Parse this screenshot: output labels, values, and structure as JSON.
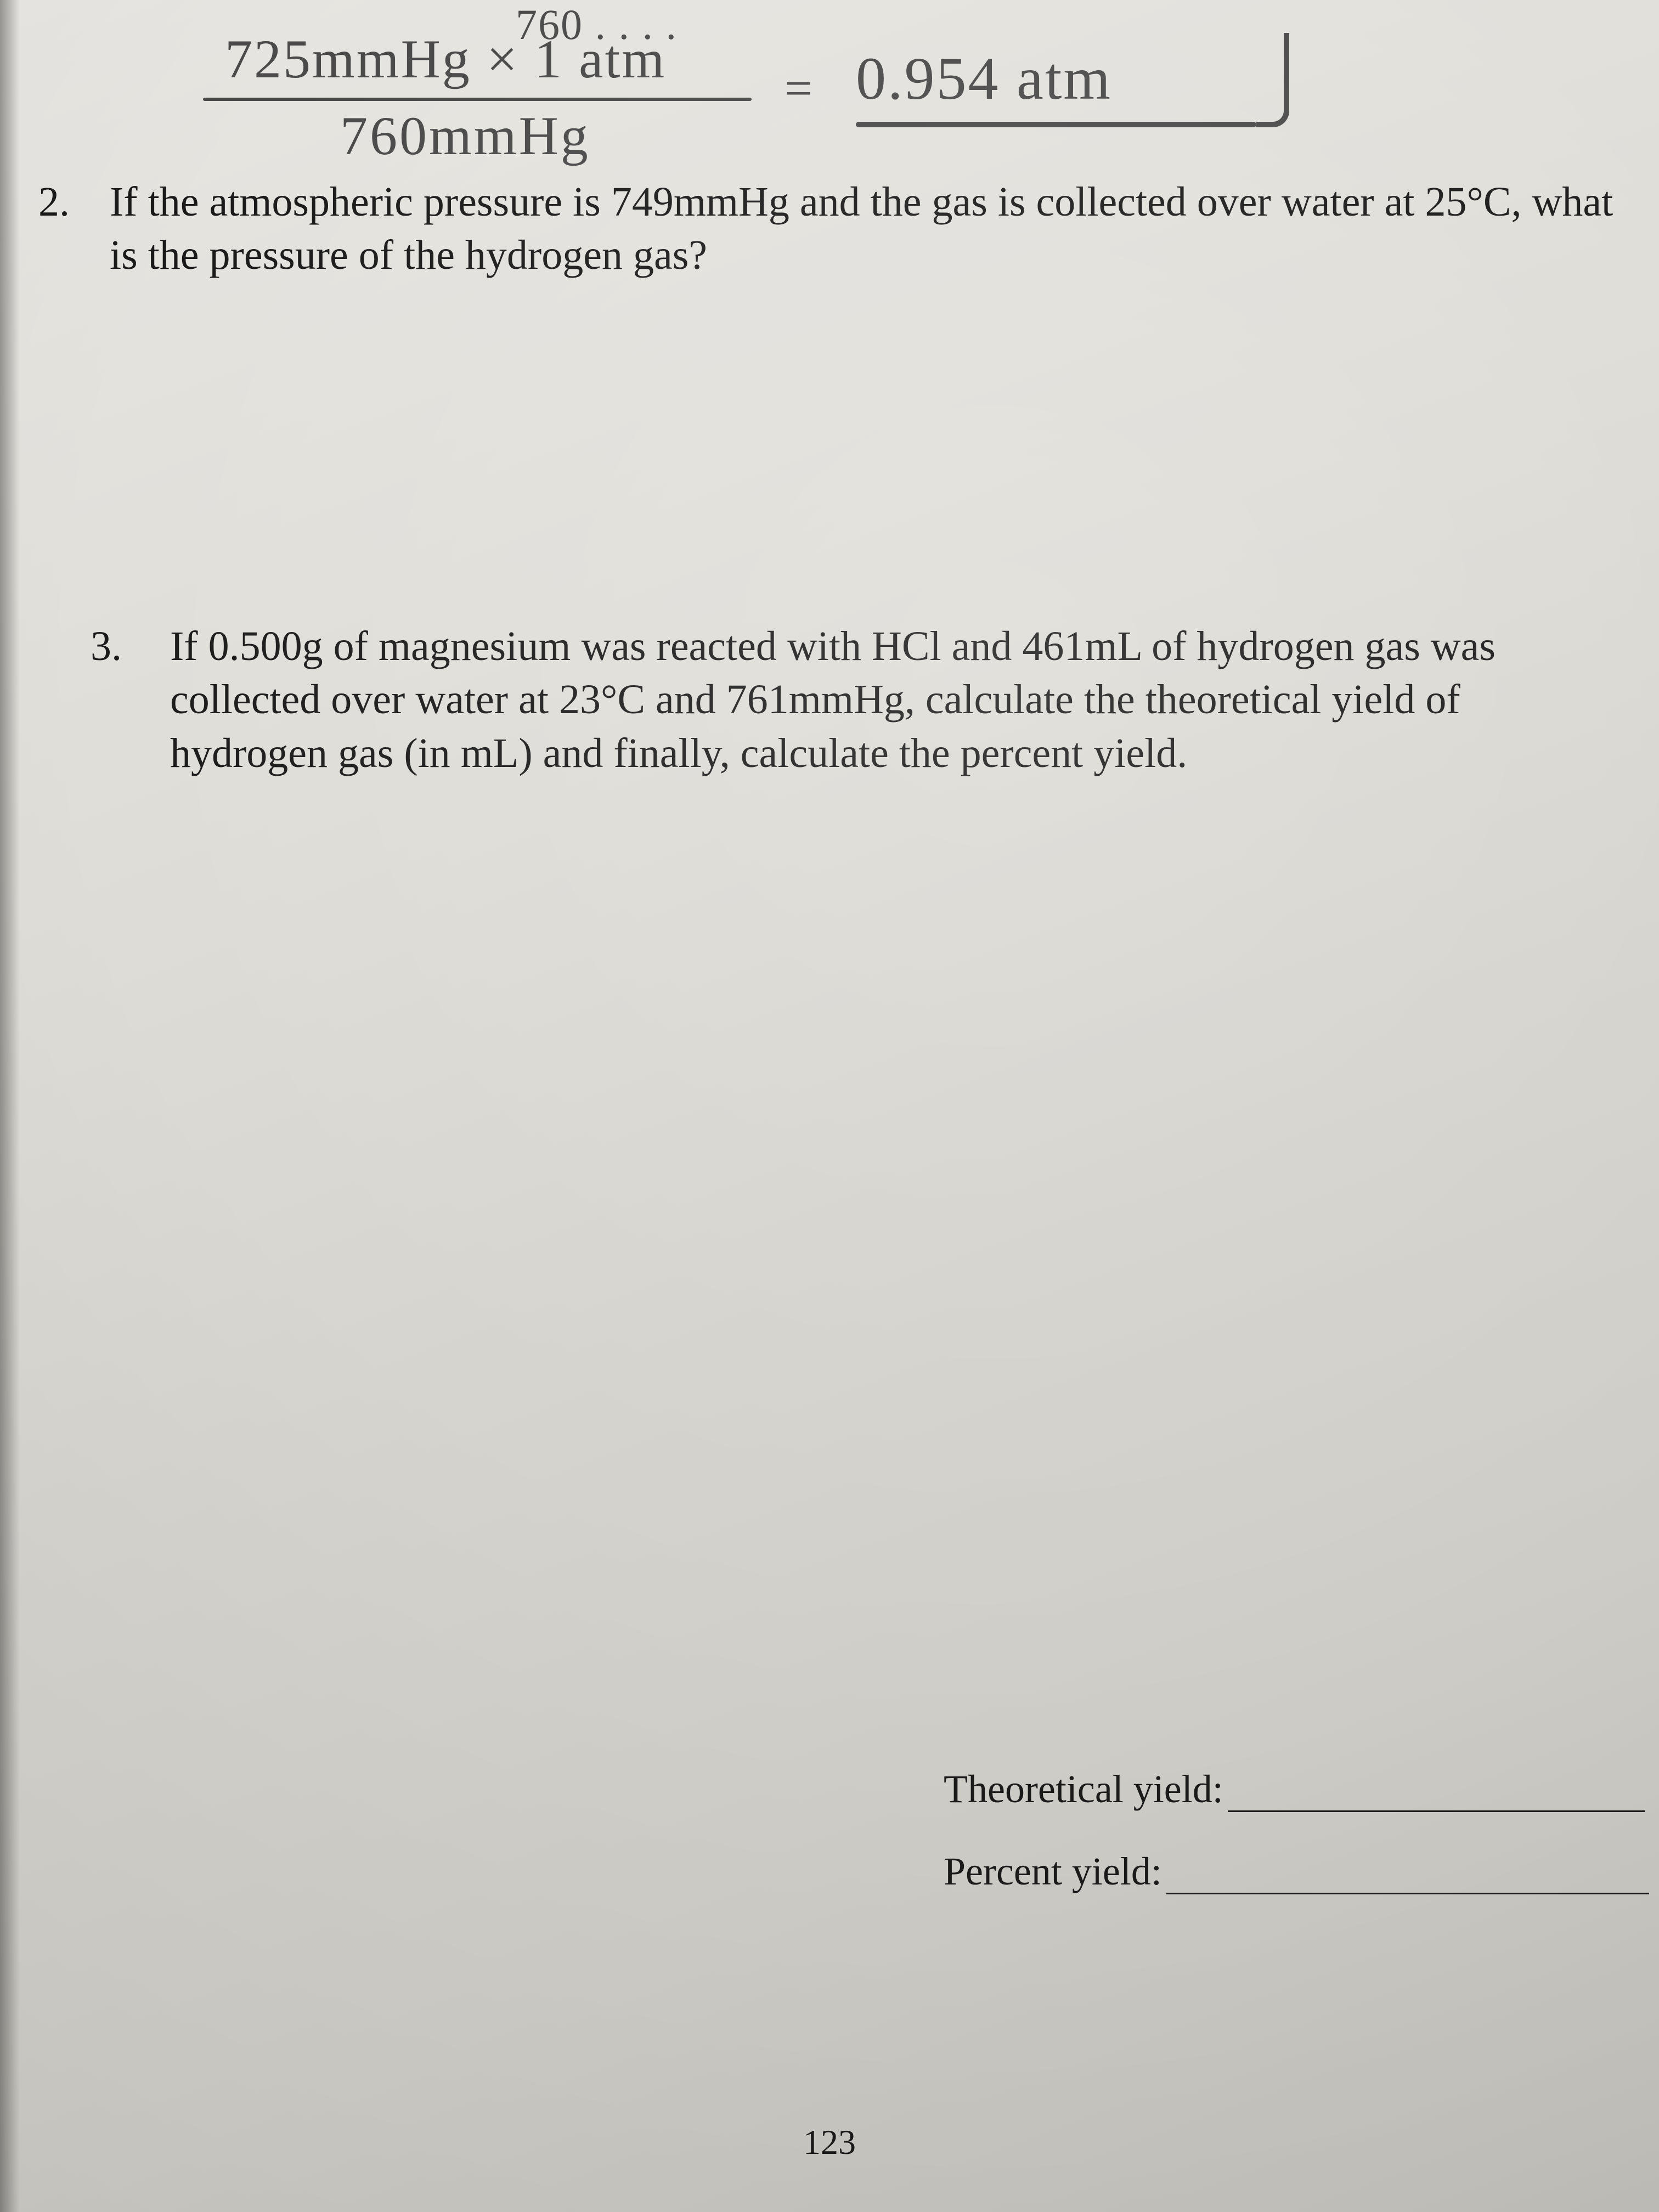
{
  "colors": {
    "paper_bg_top": "#e8e6e2",
    "paper_bg_bottom": "#c4c2bc",
    "ink_printed": "#1a1a1a",
    "ink_handwritten": "#4a4a4a"
  },
  "typography": {
    "printed_family": "Times New Roman",
    "printed_size_pt": 76,
    "handwritten_family": "Segoe Script",
    "handwritten_size_pt": 100
  },
  "handwriting": {
    "top_partial": "760 . . . .",
    "numerator": "725mmHg × 1 atm",
    "denominator": "760mmHg",
    "equals": "=",
    "result": "0.954 atm"
  },
  "questions": {
    "q2": {
      "number": "2.",
      "text": "If the atmospheric pressure is 749mmHg and the gas is collected over water at 25°C, what is the pressure of the hydrogen gas?"
    },
    "q3": {
      "number": "3.",
      "text": "If 0.500g of magnesium was reacted with HCl and 461mL of hydrogen gas was collected over water at 23°C and 761mmHg, calculate the theoretical yield of hydrogen gas (in mL) and finally, calculate the percent yield."
    }
  },
  "answers": {
    "theoretical_label": "Theoretical yield:",
    "percent_label": "Percent yield:"
  },
  "page_number": "123"
}
